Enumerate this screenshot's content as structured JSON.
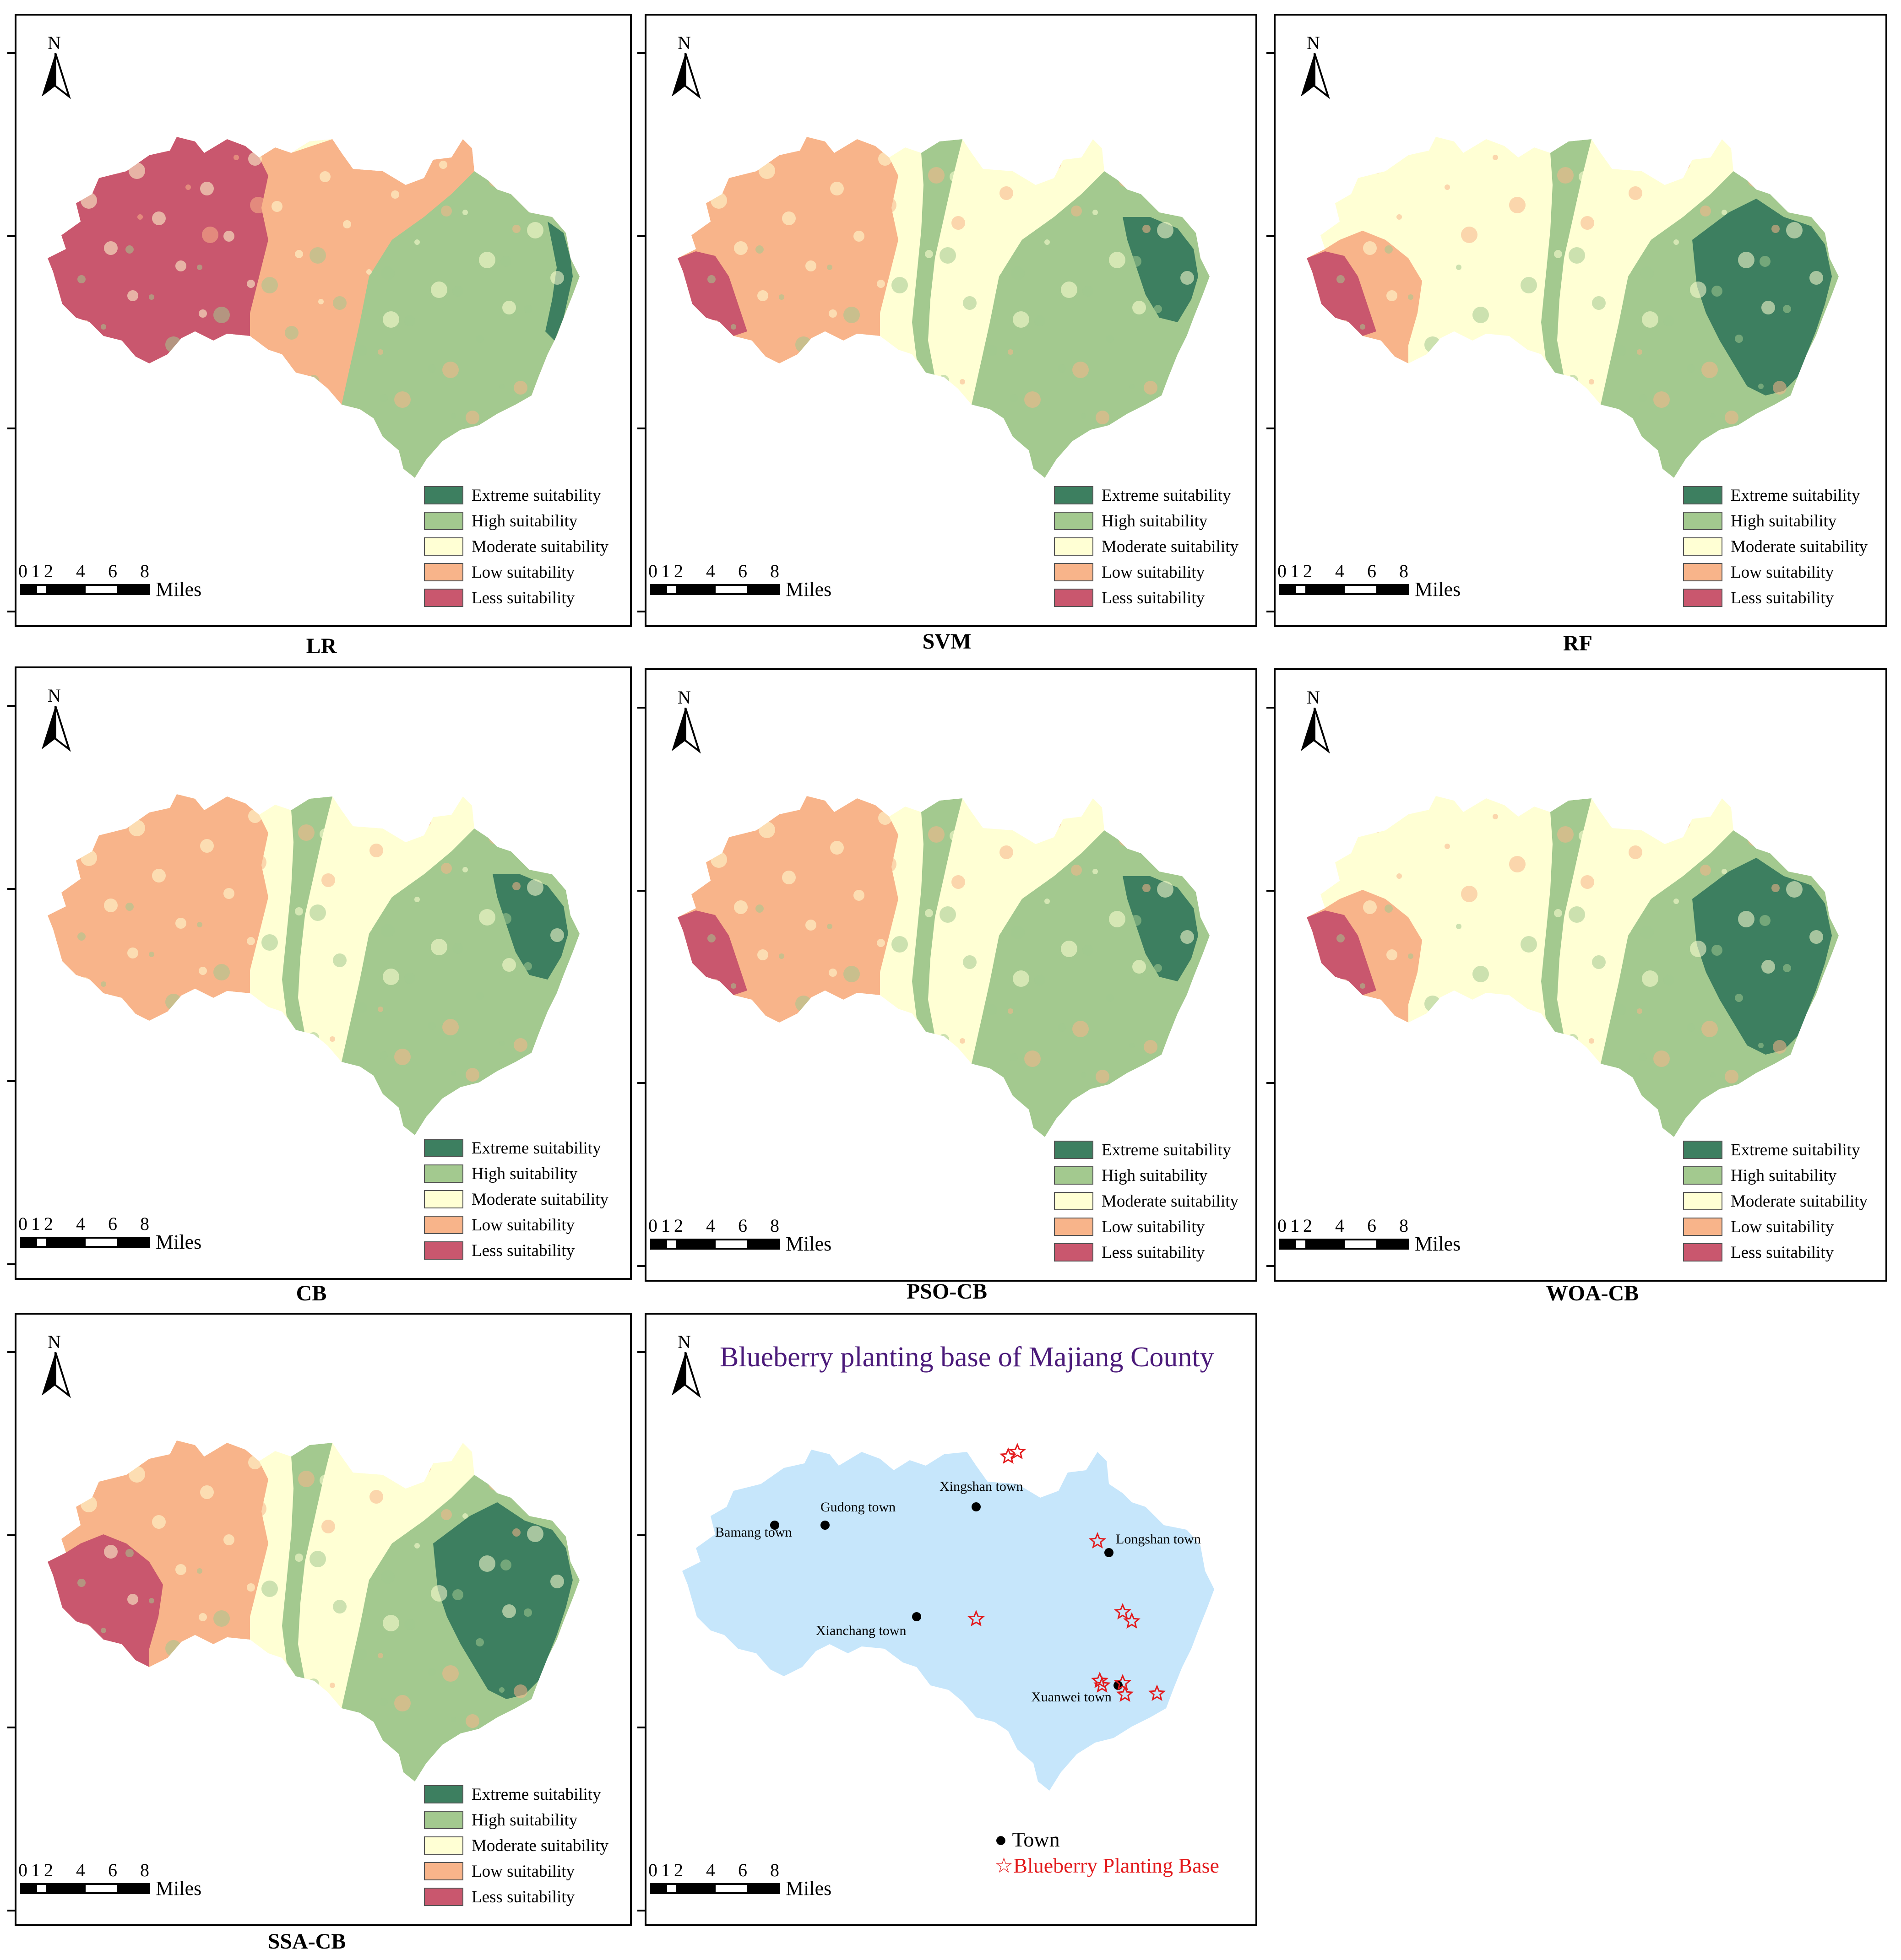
{
  "legend_labels": [
    "Extreme suitability",
    "High suitability",
    "Moderate suitability",
    "Low suitability",
    "Less suitability"
  ],
  "colors": {
    "extreme": "#3d7f60",
    "high": "#a3c98f",
    "moderate": "#ffffd4",
    "low": "#f8b48a",
    "less": "#c9576e",
    "county_fill": "#c6e6fb",
    "title_color": "#4b1a7a",
    "star_color": "#e31a1c"
  },
  "north_label": "N",
  "scale": {
    "ticks": [
      "0",
      "1",
      "2",
      "4",
      "6",
      "8"
    ],
    "units": "Miles"
  },
  "panels": [
    {
      "caption": "LR"
    },
    {
      "caption": "SVM"
    },
    {
      "caption": "RF"
    },
    {
      "caption": "CB"
    },
    {
      "caption": "PSO-CB"
    },
    {
      "caption": "WOA-CB"
    },
    {
      "caption": "SSA-CB"
    }
  ],
  "base_map": {
    "title": "Blueberry planting base of Majiang County",
    "towns": [
      "Bamang town",
      "Gudong town",
      "Xingshan town",
      "Longshan town",
      "Xianchang town",
      "Xuanwei town"
    ],
    "legend": {
      "town": "Town",
      "base": "Blueberry Planting Base"
    }
  }
}
